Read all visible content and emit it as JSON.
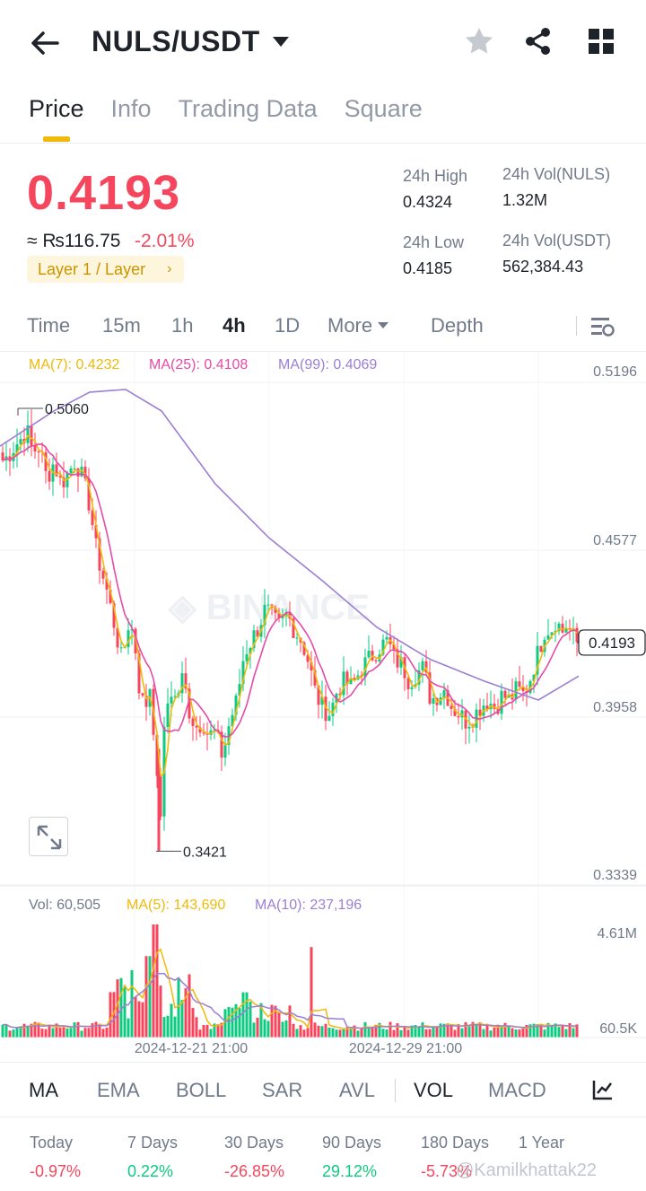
{
  "header": {
    "pair": "NULS/USDT"
  },
  "tabs": [
    "Price",
    "Info",
    "Trading Data",
    "Square"
  ],
  "ticker": {
    "price": "0.4193",
    "fiat": "≈ ₨116.75",
    "change": "-2.01%",
    "tag": "Layer 1 / Layer",
    "high_label": "24h High",
    "high_value": "0.4324",
    "low_label": "24h Low",
    "low_value": "0.4185",
    "vol_base_label": "24h Vol(NULS)",
    "vol_base_value": "1.32M",
    "vol_quote_label": "24h Vol(USDT)",
    "vol_quote_value": "562,384.43"
  },
  "intervals": [
    "Time",
    "15m",
    "1h",
    "4h",
    "1D",
    "More",
    "Depth"
  ],
  "chart_data": {
    "type": "candlestick",
    "interval": "4h",
    "watermark": "BINANCE",
    "legend": [
      "MA(7): 0.4232",
      "MA(25): 0.4108",
      "MA(99): 0.4069"
    ],
    "y_ticks": [
      "0.5196",
      "0.4577",
      "0.3958",
      "0.3339"
    ],
    "ylim": [
      0.3339,
      0.5196
    ],
    "last_price": "0.4193",
    "high_marker": "0.5060",
    "low_marker": "0.3421",
    "x_ticks": [
      "2024-12-21 21:00",
      "2024-12-29 21:00"
    ],
    "volume": {
      "legend": [
        "Vol: 60,505",
        "MA(5): 143,690",
        "MA(10): 237,196"
      ],
      "y_ticks": [
        "4.61M",
        "60.5K"
      ]
    },
    "colors": {
      "up": "#0ecb81",
      "down": "#f6465d",
      "ma7": "#f0b90b",
      "ma25": "#e64aa8",
      "ma99": "#9c7fd4"
    }
  },
  "indicators": [
    "MA",
    "EMA",
    "BOLL",
    "SAR",
    "AVL",
    "VOL",
    "MACD"
  ],
  "performance": [
    {
      "label": "Today",
      "value": "-0.97%",
      "dir": "neg"
    },
    {
      "label": "7 Days",
      "value": "0.22%",
      "dir": "pos"
    },
    {
      "label": "30 Days",
      "value": "-26.85%",
      "dir": "neg"
    },
    {
      "label": "90 Days",
      "value": "29.12%",
      "dir": "pos"
    },
    {
      "label": "180 Days",
      "value": "-5.73%",
      "dir": "neg"
    },
    {
      "label": "1 Year",
      "value": "",
      "dir": "pos"
    }
  ],
  "watermark_user": "@Kamilkhattak22",
  "icons": [
    "back-arrow-icon",
    "star-icon",
    "share-icon",
    "grid-icon",
    "chart-settings-icon",
    "expand-icon",
    "indicator-settings-icon"
  ]
}
